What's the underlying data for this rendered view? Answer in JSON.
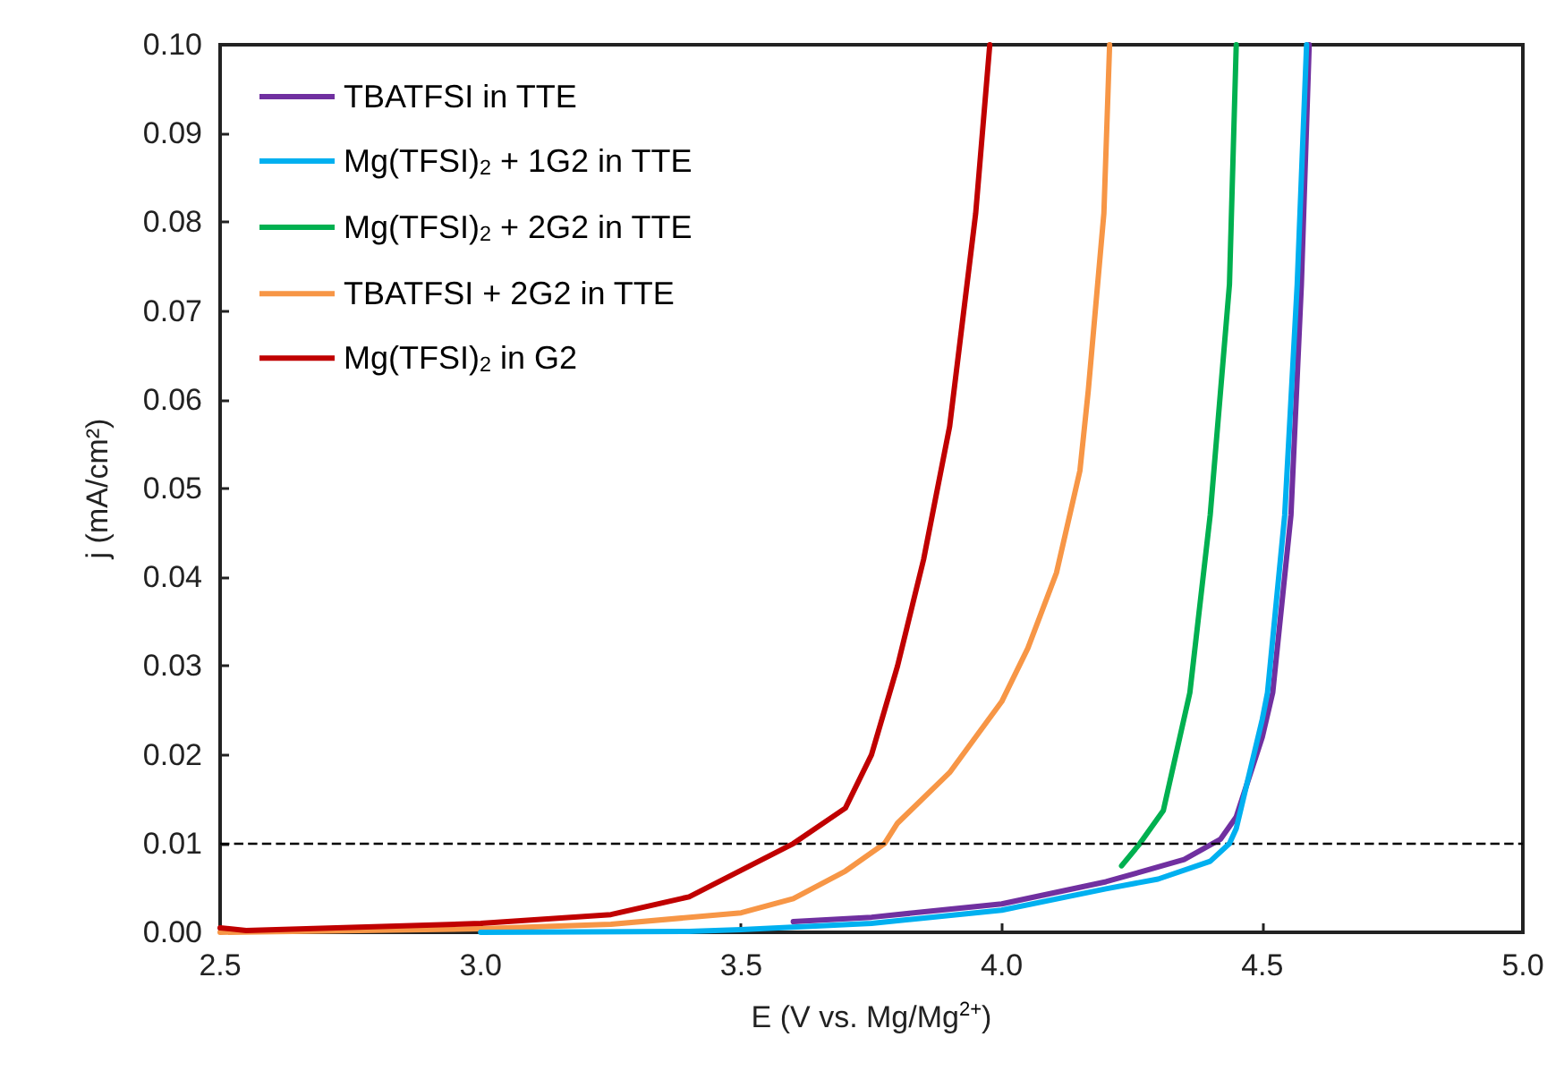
{
  "chart_data": {
    "type": "line",
    "xlabel": "E (V vs. Mg/Mg$^{2+}$)",
    "ylabel": "j (mA/cm²)",
    "xlim": [
      2.5,
      5.0
    ],
    "xticks": [
      {
        "value": 2.5,
        "label": "2.5"
      },
      {
        "value": 3.0,
        "label": "3.0"
      },
      {
        "value": 3.5,
        "label": "3.5"
      },
      {
        "value": 4.0,
        "label": "4.0"
      },
      {
        "value": 4.5,
        "label": "4.5"
      },
      {
        "value": 5.0,
        "label": "5.0"
      }
    ],
    "ylim": [
      0,
      0.1
    ],
    "yticks": [
      {
        "value": 0,
        "label": "0.00"
      },
      {
        "value": 0.01,
        "label": "0.01"
      },
      {
        "value": 0.02,
        "label": "0.02"
      },
      {
        "value": 0.03,
        "label": "0.03"
      },
      {
        "value": 0.04,
        "label": "0.04"
      },
      {
        "value": 0.05,
        "label": "0.05"
      },
      {
        "value": 0.06,
        "label": "0.06"
      },
      {
        "value": 0.07,
        "label": "0.07"
      },
      {
        "value": 0.08,
        "label": "0.08"
      },
      {
        "value": 0.09,
        "label": "0.09"
      },
      {
        "value": 0.1,
        "label": "0.10"
      }
    ],
    "grid": false,
    "legend": "top left",
    "marker": "none",
    "line_style": "solid",
    "ref_lines": [
      {
        "axis": "y",
        "value": 0.01,
        "color": "#000000",
        "line_style": "dashed"
      }
    ],
    "series": [
      {
        "name": "TBATFSI in TTE",
        "color": "#7030a0",
        "x": [
          3.6,
          3.75,
          4.0,
          4.2,
          4.35,
          4.42,
          4.45,
          4.5,
          4.52,
          4.555,
          4.575,
          4.59
        ],
        "values": [
          0.0012,
          0.0017,
          0.0032,
          0.0057,
          0.0082,
          0.0105,
          0.013,
          0.022,
          0.027,
          0.047,
          0.073,
          0.1
        ]
      },
      {
        "name": "Mg(TFSI)$_{2}$ + 1G2 in TTE",
        "color": "#00b0f0",
        "x": [
          3.0,
          3.4,
          3.5,
          3.75,
          4.0,
          4.2,
          4.3,
          4.4,
          4.437,
          4.45,
          4.5,
          4.51,
          4.543,
          4.567,
          4.585
        ],
        "values": [
          0,
          0.0001,
          0.0003,
          0.001,
          0.0025,
          0.0049,
          0.006,
          0.008,
          0.01,
          0.0117,
          0.024,
          0.027,
          0.047,
          0.073,
          0.1
        ]
      },
      {
        "name": "Mg(TFSI)$_{2}$ + 2G2 in TTE",
        "color": "#00b050",
        "x": [
          4.23,
          4.265,
          4.31,
          4.361,
          4.4,
          4.437,
          4.45
        ],
        "values": [
          0.0075,
          0.01,
          0.0137,
          0.027,
          0.047,
          0.073,
          0.1
        ]
      },
      {
        "name": "TBATFSI + 2G2 in TTE",
        "color": "#f79646",
        "x": [
          2.5,
          3.0,
          3.25,
          3.5,
          3.6,
          3.7,
          3.775,
          3.8,
          3.9,
          4.0,
          4.05,
          4.105,
          4.15,
          4.166,
          4.196,
          4.207
        ],
        "values": [
          0,
          0.0004,
          0.0009,
          0.0022,
          0.0038,
          0.0069,
          0.01,
          0.0123,
          0.018,
          0.026,
          0.032,
          0.0405,
          0.052,
          0.061,
          0.081,
          0.1
        ]
      },
      {
        "name": "Mg(TFSI)$_{2}$ in G2",
        "color": "#c00000",
        "x": [
          2.5,
          2.55,
          3.0,
          3.25,
          3.4,
          3.5,
          3.6,
          3.7,
          3.75,
          3.8,
          3.85,
          3.9,
          3.95,
          3.977
        ],
        "values": [
          0.0005,
          0.0002,
          0.001,
          0.002,
          0.004,
          0.007,
          0.01,
          0.014,
          0.02,
          0.03,
          0.042,
          0.057,
          0.081,
          0.1
        ]
      }
    ]
  }
}
